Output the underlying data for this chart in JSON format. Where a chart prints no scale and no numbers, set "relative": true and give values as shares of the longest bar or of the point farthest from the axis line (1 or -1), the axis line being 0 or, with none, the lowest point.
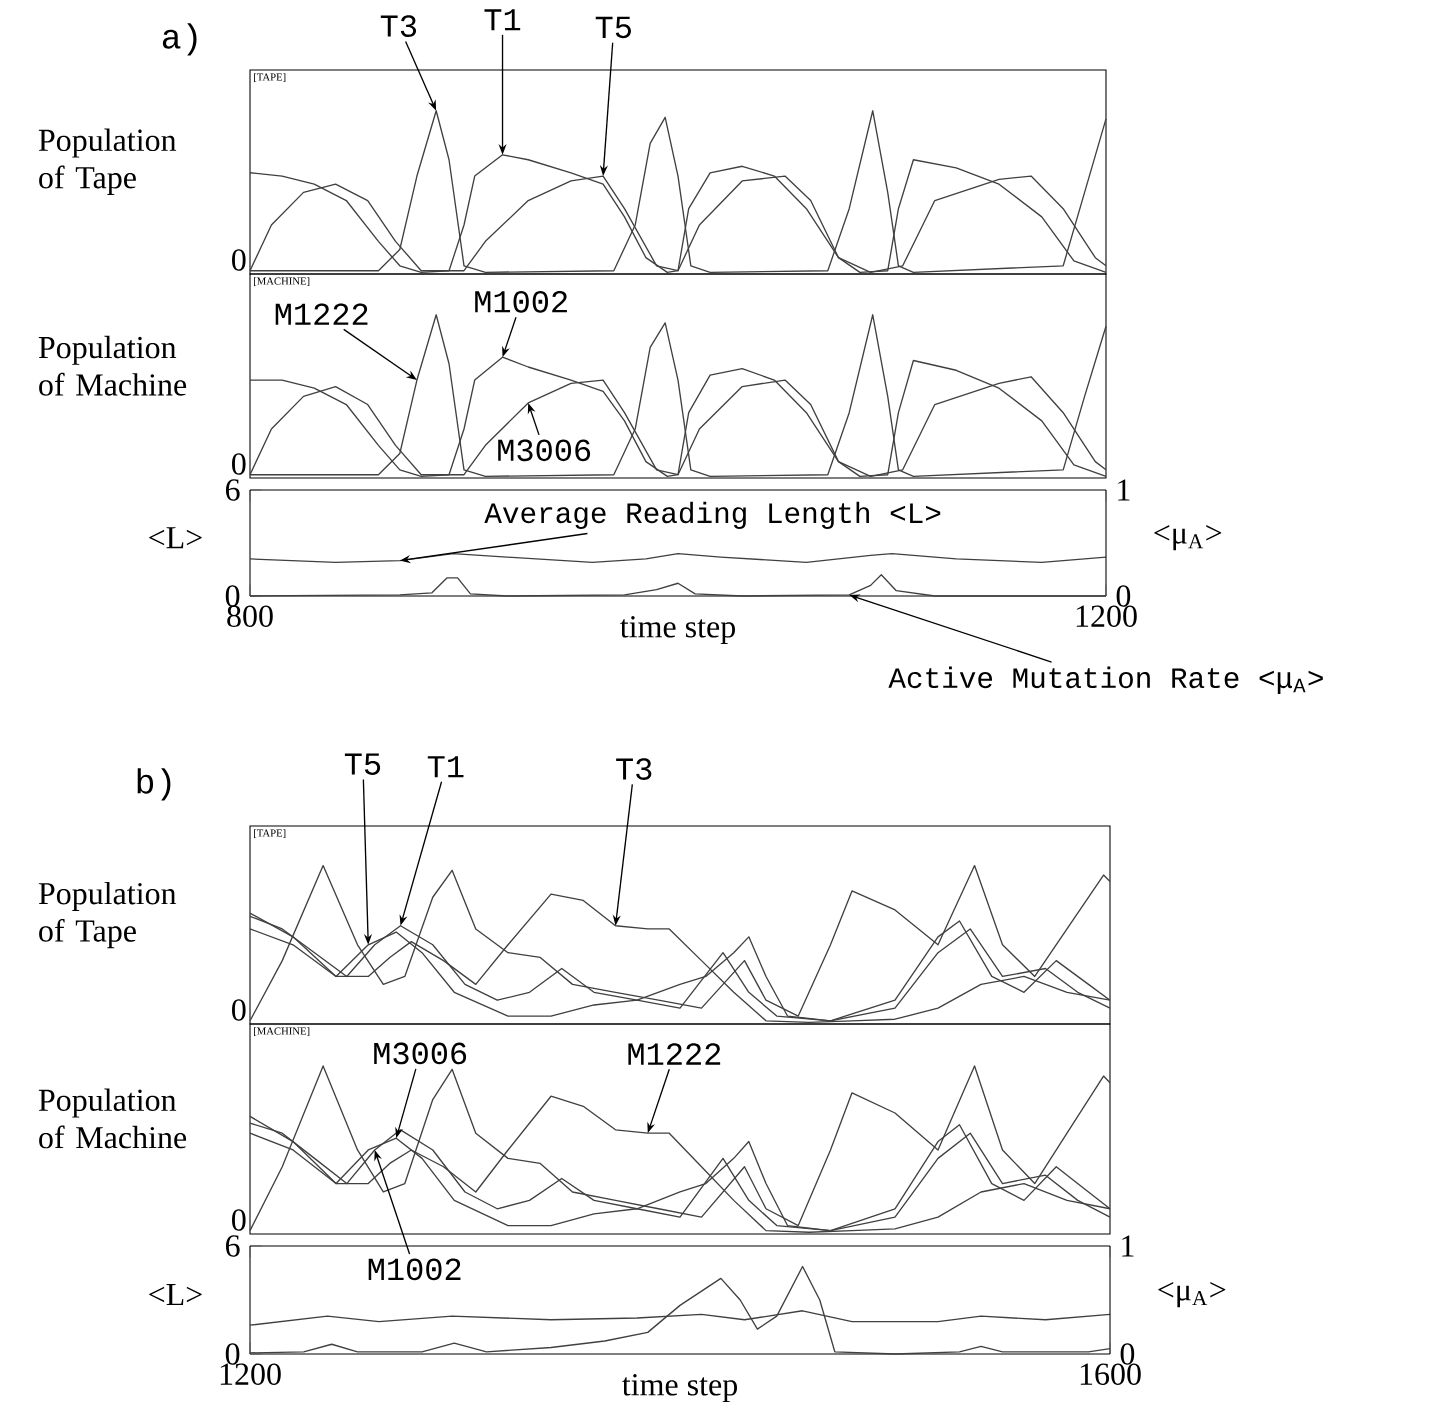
{
  "chart_data": [
    {
      "type": "line",
      "relative": true,
      "ylabel": "Population of Tape",
      "xlim": [
        800,
        1200
      ],
      "tick_labels": false,
      "annotations": [
        "a)",
        "0",
        "[TAPE]",
        {
          "text": "T3",
          "x": 887,
          "y": 1.0
        },
        {
          "text": "T1",
          "x": 918,
          "y": 0.73
        },
        {
          "text": "T5",
          "x": 965,
          "y": 0.6
        }
      ],
      "series": [
        {
          "color": "#404040",
          "x": [
            800,
            860,
            870,
            878,
            887,
            893,
            900,
            910,
            970,
            980,
            987,
            994,
            1000,
            1006,
            1015,
            1070,
            1080,
            1091,
            1098,
            1103,
            1110,
            1180,
            1190,
            1200
          ],
          "values": [
            0.02,
            0.02,
            0.15,
            0.6,
            1.0,
            0.7,
            0.05,
            0.01,
            0.02,
            0.3,
            0.8,
            0.96,
            0.6,
            0.05,
            0.01,
            0.02,
            0.4,
            1.0,
            0.5,
            0.05,
            0.01,
            0.05,
            0.5,
            0.95
          ]
        },
        {
          "color": "#404040",
          "x": [
            800,
            815,
            830,
            845,
            860,
            870,
            880,
            893,
            900,
            905,
            918,
            930,
            950,
            965,
            975,
            985,
            995,
            1000,
            1005,
            1015,
            1030,
            1045,
            1060,
            1075,
            1085,
            1098,
            1103,
            1110,
            1130,
            1150,
            1170,
            1185,
            1200
          ],
          "values": [
            0.62,
            0.6,
            0.55,
            0.45,
            0.2,
            0.05,
            0.01,
            0.02,
            0.3,
            0.6,
            0.73,
            0.7,
            0.62,
            0.55,
            0.35,
            0.1,
            0.01,
            0.02,
            0.4,
            0.62,
            0.66,
            0.6,
            0.4,
            0.1,
            0.01,
            0.02,
            0.4,
            0.7,
            0.65,
            0.55,
            0.35,
            0.08,
            0.01
          ]
        },
        {
          "color": "#404040",
          "x": [
            800,
            810,
            825,
            840,
            855,
            868,
            880,
            900,
            910,
            930,
            950,
            965,
            975,
            990,
            1000,
            1010,
            1030,
            1050,
            1062,
            1075,
            1090,
            1105,
            1120,
            1150,
            1165,
            1180,
            1195,
            1200
          ],
          "values": [
            0.02,
            0.3,
            0.5,
            0.55,
            0.45,
            0.2,
            0.02,
            0.02,
            0.2,
            0.45,
            0.57,
            0.6,
            0.4,
            0.05,
            0.02,
            0.3,
            0.57,
            0.6,
            0.45,
            0.1,
            0.01,
            0.05,
            0.45,
            0.58,
            0.6,
            0.4,
            0.1,
            0.05
          ]
        }
      ]
    },
    {
      "type": "line",
      "relative": true,
      "ylabel": "Population of Machine",
      "xlim": [
        800,
        1200
      ],
      "tick_labels": false,
      "annotations": [
        "0",
        "[MACHINE]",
        {
          "text": "M1222",
          "x": 878,
          "y": 0.6
        },
        {
          "text": "M1002",
          "x": 918,
          "y": 0.74
        },
        {
          "text": "M3006",
          "x": 930,
          "y": 0.46
        }
      ],
      "series": [
        {
          "color": "#404040",
          "x": [
            800,
            860,
            870,
            878,
            887,
            893,
            900,
            910,
            970,
            980,
            987,
            994,
            1000,
            1006,
            1015,
            1070,
            1080,
            1091,
            1098,
            1103,
            1110,
            1180,
            1190,
            1200
          ],
          "values": [
            0.02,
            0.02,
            0.15,
            0.6,
            1.0,
            0.7,
            0.05,
            0.01,
            0.02,
            0.3,
            0.8,
            0.95,
            0.6,
            0.05,
            0.01,
            0.02,
            0.4,
            1.0,
            0.5,
            0.05,
            0.01,
            0.05,
            0.5,
            0.93
          ]
        },
        {
          "color": "#404040",
          "x": [
            800,
            815,
            830,
            845,
            860,
            870,
            880,
            893,
            900,
            905,
            918,
            930,
            950,
            965,
            975,
            985,
            995,
            1000,
            1005,
            1015,
            1030,
            1045,
            1060,
            1075,
            1085,
            1098,
            1103,
            1110,
            1130,
            1150,
            1170,
            1185,
            1200
          ],
          "values": [
            0.6,
            0.6,
            0.55,
            0.45,
            0.2,
            0.05,
            0.01,
            0.02,
            0.3,
            0.6,
            0.74,
            0.68,
            0.6,
            0.53,
            0.35,
            0.1,
            0.01,
            0.02,
            0.4,
            0.63,
            0.67,
            0.6,
            0.4,
            0.1,
            0.01,
            0.02,
            0.4,
            0.72,
            0.66,
            0.55,
            0.35,
            0.08,
            0.01
          ]
        },
        {
          "color": "#404040",
          "x": [
            800,
            810,
            825,
            840,
            855,
            868,
            880,
            900,
            910,
            930,
            950,
            965,
            975,
            990,
            1000,
            1010,
            1030,
            1050,
            1062,
            1075,
            1090,
            1105,
            1120,
            1150,
            1165,
            1180,
            1195,
            1200
          ],
          "values": [
            0.02,
            0.3,
            0.5,
            0.56,
            0.45,
            0.2,
            0.02,
            0.02,
            0.2,
            0.46,
            0.58,
            0.6,
            0.4,
            0.05,
            0.02,
            0.3,
            0.56,
            0.6,
            0.45,
            0.1,
            0.01,
            0.05,
            0.45,
            0.58,
            0.62,
            0.4,
            0.1,
            0.05
          ]
        }
      ]
    },
    {
      "type": "line",
      "ylabel": "<L>",
      "y2label": "<μ$_{A}$>",
      "xlabel": "time step",
      "xlim": [
        800,
        1200
      ],
      "xticks": [
        800,
        1200
      ],
      "ylim": [
        0,
        6
      ],
      "yticks": [
        0,
        6
      ],
      "y2lim": [
        0,
        1
      ],
      "y2ticks": [
        0,
        1
      ],
      "annotations": [
        {
          "text": "Average Reading Length <L>",
          "x": 870,
          "y": 2.0
        },
        {
          "text": "Active Mutation Rate <μ$_{A}$>",
          "x": 1080,
          "y": 0.06
        }
      ],
      "series": [
        {
          "color": "#404040",
          "x": [
            800,
            840,
            870,
            895,
            920,
            960,
            985,
            1000,
            1020,
            1060,
            1090,
            1100,
            1130,
            1170,
            1200
          ],
          "values": [
            2.1,
            1.9,
            2.0,
            2.4,
            2.2,
            1.9,
            2.1,
            2.4,
            2.2,
            1.9,
            2.3,
            2.4,
            2.1,
            1.9,
            2.2
          ]
        },
        {
          "color": "#404040",
          "axis": "y2",
          "x": [
            800,
            870,
            885,
            892,
            897,
            903,
            920,
            975,
            990,
            1000,
            1008,
            1030,
            1080,
            1090,
            1095,
            1102,
            1120,
            1200
          ],
          "values": [
            0,
            0.01,
            0.03,
            0.17,
            0.17,
            0.02,
            0,
            0.01,
            0.06,
            0.12,
            0.02,
            0,
            0.01,
            0.1,
            0.2,
            0.05,
            0,
            0
          ]
        }
      ]
    },
    {
      "type": "line",
      "relative": true,
      "ylabel": "Population of Tape",
      "xlim": [
        1200,
        1600
      ],
      "tick_labels": false,
      "annotations": [
        "b)",
        "0",
        "[TAPE]",
        {
          "text": "T5",
          "x": 1255,
          "y": 0.5
        },
        {
          "text": "T1",
          "x": 1270,
          "y": 0.62
        },
        {
          "text": "T3",
          "x": 1370,
          "y": 0.62
        }
      ],
      "series": [
        {
          "color": "#404040",
          "x": [
            1200,
            1215,
            1234,
            1250,
            1262,
            1272,
            1285,
            1294,
            1305,
            1320,
            1335,
            1350,
            1370,
            1390,
            1410,
            1430,
            1440,
            1455,
            1470,
            1480,
            1500,
            1520,
            1537,
            1550,
            1565,
            1580,
            1597,
            1600
          ],
          "values": [
            0.02,
            0.4,
            1.0,
            0.5,
            0.25,
            0.3,
            0.8,
            0.97,
            0.6,
            0.45,
            0.42,
            0.25,
            0.2,
            0.15,
            0.1,
            0.4,
            0.15,
            0.05,
            0.5,
            0.84,
            0.72,
            0.5,
            1.0,
            0.5,
            0.3,
            0.6,
            0.94,
            0.9
          ]
        },
        {
          "color": "#404040",
          "x": [
            1200,
            1220,
            1240,
            1255,
            1265,
            1275,
            1290,
            1305,
            1320,
            1340,
            1355,
            1370,
            1385,
            1395,
            1410,
            1425,
            1440,
            1460,
            1480,
            1500,
            1520,
            1540,
            1560,
            1580,
            1600
          ],
          "values": [
            0.7,
            0.55,
            0.3,
            0.3,
            0.42,
            0.52,
            0.4,
            0.25,
            0.5,
            0.82,
            0.78,
            0.62,
            0.6,
            0.6,
            0.4,
            0.2,
            0.02,
            0.01,
            0.02,
            0.03,
            0.1,
            0.25,
            0.3,
            0.2,
            0.15
          ]
        },
        {
          "color": "#404040",
          "x": [
            1200,
            1215,
            1230,
            1245,
            1258,
            1270,
            1285,
            1300,
            1315,
            1330,
            1345,
            1360,
            1380,
            1400,
            1412,
            1425,
            1432,
            1440,
            1450,
            1470,
            1500,
            1520,
            1530,
            1545,
            1560,
            1575,
            1590,
            1600
          ],
          "values": [
            0.68,
            0.6,
            0.45,
            0.3,
            0.5,
            0.62,
            0.5,
            0.25,
            0.15,
            0.2,
            0.35,
            0.2,
            0.15,
            0.25,
            0.3,
            0.45,
            0.55,
            0.3,
            0.05,
            0.02,
            0.15,
            0.55,
            0.65,
            0.3,
            0.2,
            0.4,
            0.25,
            0.15
          ]
        },
        {
          "color": "#404040",
          "x": [
            1200,
            1220,
            1240,
            1255,
            1268,
            1280,
            1295,
            1320,
            1340,
            1360,
            1380,
            1400,
            1420,
            1432,
            1445,
            1470,
            1500,
            1520,
            1535,
            1550,
            1570,
            1585,
            1600
          ],
          "values": [
            0.6,
            0.5,
            0.3,
            0.5,
            0.58,
            0.45,
            0.2,
            0.05,
            0.05,
            0.12,
            0.15,
            0.1,
            0.45,
            0.2,
            0.05,
            0.02,
            0.1,
            0.45,
            0.6,
            0.3,
            0.35,
            0.2,
            0.1
          ]
        }
      ]
    },
    {
      "type": "line",
      "relative": true,
      "ylabel": "Population of Machine",
      "xlim": [
        1200,
        1600
      ],
      "tick_labels": false,
      "annotations": [
        "0",
        "[MACHINE]",
        {
          "text": "M3006",
          "x": 1268,
          "y": 0.57
        },
        {
          "text": "M1222",
          "x": 1385,
          "y": 0.6
        },
        {
          "text": "M1002",
          "x": 1258,
          "y": 0.5
        }
      ],
      "series": [
        {
          "color": "#404040",
          "x": [
            1200,
            1215,
            1234,
            1250,
            1262,
            1272,
            1285,
            1294,
            1305,
            1320,
            1335,
            1350,
            1370,
            1390,
            1410,
            1430,
            1440,
            1455,
            1470,
            1480,
            1500,
            1520,
            1537,
            1550,
            1565,
            1580,
            1597,
            1600
          ],
          "values": [
            0.02,
            0.4,
            1.0,
            0.5,
            0.25,
            0.3,
            0.8,
            0.98,
            0.6,
            0.45,
            0.42,
            0.25,
            0.2,
            0.15,
            0.1,
            0.4,
            0.15,
            0.05,
            0.5,
            0.84,
            0.72,
            0.5,
            1.0,
            0.5,
            0.3,
            0.6,
            0.94,
            0.9
          ]
        },
        {
          "color": "#404040",
          "x": [
            1200,
            1220,
            1240,
            1255,
            1265,
            1275,
            1290,
            1305,
            1320,
            1340,
            1355,
            1370,
            1385,
            1395,
            1410,
            1425,
            1440,
            1460,
            1480,
            1500,
            1520,
            1540,
            1560,
            1580,
            1600
          ],
          "values": [
            0.7,
            0.55,
            0.3,
            0.3,
            0.42,
            0.5,
            0.4,
            0.25,
            0.5,
            0.82,
            0.76,
            0.62,
            0.6,
            0.6,
            0.4,
            0.2,
            0.02,
            0.01,
            0.02,
            0.03,
            0.1,
            0.25,
            0.3,
            0.2,
            0.15
          ]
        },
        {
          "color": "#404040",
          "x": [
            1200,
            1215,
            1230,
            1245,
            1258,
            1270,
            1285,
            1300,
            1315,
            1330,
            1345,
            1360,
            1380,
            1400,
            1412,
            1425,
            1432,
            1440,
            1450,
            1470,
            1500,
            1520,
            1530,
            1545,
            1560,
            1575,
            1590,
            1600
          ],
          "values": [
            0.66,
            0.6,
            0.45,
            0.3,
            0.5,
            0.62,
            0.5,
            0.25,
            0.15,
            0.2,
            0.33,
            0.2,
            0.15,
            0.25,
            0.3,
            0.45,
            0.55,
            0.3,
            0.05,
            0.02,
            0.15,
            0.55,
            0.65,
            0.3,
            0.2,
            0.4,
            0.25,
            0.15
          ]
        },
        {
          "color": "#404040",
          "x": [
            1200,
            1220,
            1240,
            1255,
            1268,
            1280,
            1295,
            1320,
            1340,
            1360,
            1380,
            1400,
            1420,
            1432,
            1445,
            1470,
            1500,
            1520,
            1535,
            1550,
            1570,
            1585,
            1600
          ],
          "values": [
            0.6,
            0.5,
            0.3,
            0.5,
            0.57,
            0.45,
            0.2,
            0.05,
            0.05,
            0.12,
            0.15,
            0.1,
            0.45,
            0.2,
            0.05,
            0.02,
            0.1,
            0.45,
            0.6,
            0.3,
            0.35,
            0.2,
            0.1
          ]
        }
      ]
    },
    {
      "type": "line",
      "ylabel": "<L>",
      "y2label": "<μ$_{A}$>",
      "xlabel": "time step",
      "xlim": [
        1200,
        1600
      ],
      "xticks": [
        1200,
        1600
      ],
      "ylim": [
        0,
        6
      ],
      "yticks": [
        0,
        6
      ],
      "y2lim": [
        0,
        1
      ],
      "y2ticks": [
        0,
        1
      ],
      "series": [
        {
          "color": "#404040",
          "x": [
            1200,
            1236,
            1260,
            1294,
            1340,
            1380,
            1410,
            1430,
            1457,
            1480,
            1520,
            1540,
            1570,
            1600
          ],
          "values": [
            1.6,
            2.1,
            1.8,
            2.1,
            1.9,
            2.0,
            2.2,
            1.9,
            2.4,
            1.8,
            1.8,
            2.1,
            1.9,
            2.2
          ]
        },
        {
          "color": "#404040",
          "axis": "y2",
          "x": [
            1200,
            1225,
            1238,
            1250,
            1280,
            1295,
            1310,
            1340,
            1365,
            1385,
            1400,
            1419,
            1428,
            1436,
            1445,
            1457,
            1465,
            1472,
            1500,
            1530,
            1540,
            1550,
            1590,
            1600
          ],
          "values": [
            0.01,
            0.02,
            0.09,
            0.02,
            0.02,
            0.1,
            0.02,
            0.06,
            0.12,
            0.2,
            0.45,
            0.7,
            0.5,
            0.23,
            0.35,
            0.81,
            0.5,
            0.02,
            0,
            0.02,
            0.07,
            0.02,
            0.02,
            0.05
          ]
        }
      ]
    }
  ]
}
